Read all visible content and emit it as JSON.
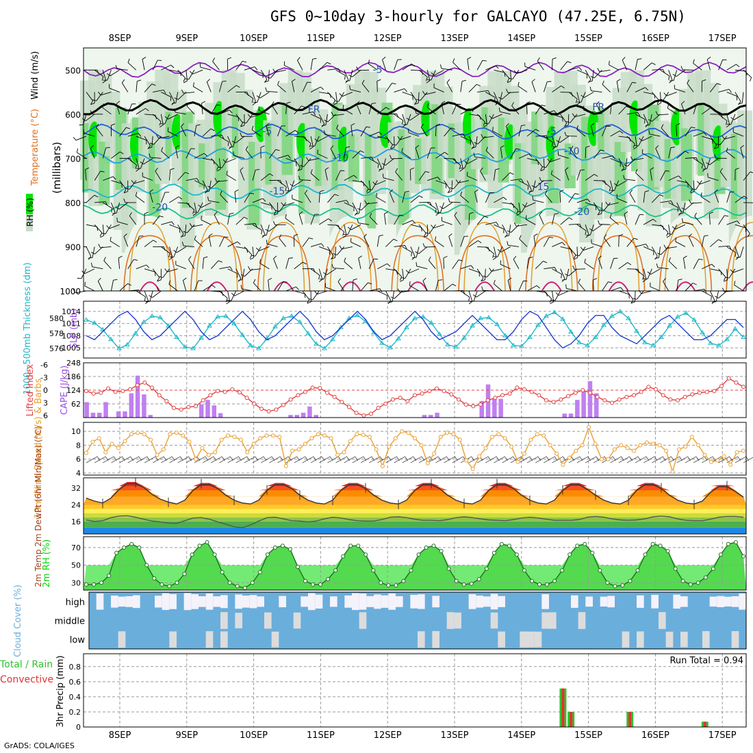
{
  "title": "GFS 0~10day 3-hourly for GALCAYO (47.25E, 6.75N)",
  "footer": "GrADS: COLA/IGES",
  "dates": [
    "8SEP",
    "9SEP",
    "10SEP",
    "11SEP",
    "12SEP",
    "13SEP",
    "14SEP",
    "15SEP",
    "16SEP",
    "17SEP"
  ],
  "colors": {
    "rh_dark": "#00e600",
    "rh_mid": "#7fd67f",
    "rh_light": "#c8dcc8",
    "rh_pale": "#eef6ee",
    "temp_neg": "#8a1fbf",
    "temp_zero": "#000000",
    "temp_5": "#1f5fd6",
    "temp_10": "#1f9fe0",
    "temp_15": "#19b8c8",
    "temp_20": "#19c08a",
    "temp_25": "#e0a030",
    "temp_30": "#e07020",
    "temp_35": "#d0207a",
    "slp": "#1f3fcf",
    "thickness": "#20b8c8",
    "cape": "#c080f0",
    "lifted": "#e04040",
    "wind": "#e8a030",
    "rh2m": "#00d800",
    "cloud": "#6aaedc",
    "cloud_clear": "#f4f2fa",
    "precip_total": "#30c030",
    "precip_conv": "#e83030"
  },
  "chart_data": [
    {
      "id": "upper_air",
      "type": "heatmap",
      "ylabel": "(millibars)",
      "side_labels": [
        "RH (%)",
        "Temperature (°C)",
        "Wind (m/s)"
      ],
      "levels_mb": [
        1000,
        900,
        800,
        700,
        600,
        500
      ],
      "isotherm_labels": [
        {
          "value": "-5",
          "day": 3.85,
          "mb": 500
        },
        {
          "value": "FR",
          "day": 2.9,
          "mb": 590
        },
        {
          "value": "FR",
          "day": 7.15,
          "mb": 585
        },
        {
          "value": "-5",
          "day": 2.2,
          "mb": 640
        },
        {
          "value": "-5",
          "day": 6.45,
          "mb": 640
        },
        {
          "value": "-10",
          "day": 3.3,
          "mb": 700
        },
        {
          "value": "-10",
          "day": 6.75,
          "mb": 685
        },
        {
          "value": "-15",
          "day": 2.35,
          "mb": 775
        },
        {
          "value": "-15",
          "day": 6.3,
          "mb": 765
        },
        {
          "value": "-20",
          "day": 0.6,
          "mb": 812
        },
        {
          "value": "-20",
          "day": 6.9,
          "mb": 822
        }
      ]
    },
    {
      "id": "slp_thickness",
      "type": "line",
      "ylabel": "SLP (mb)",
      "ylabel2": "1000~500mb Thickness (dm)",
      "yticks": [
        "1014",
        "1011",
        "1008",
        "1005"
      ],
      "yticks2": [
        "580",
        "578",
        "576"
      ],
      "ylim": [
        1003,
        1016
      ],
      "ylim2": [
        575,
        582
      ],
      "series": [
        {
          "name": "SLP",
          "values": [
            1008,
            1007,
            1009,
            1011,
            1013,
            1014,
            1012,
            1009,
            1007,
            1008,
            1010,
            1012,
            1014,
            1012,
            1009,
            1007,
            1008,
            1010,
            1012,
            1014,
            1012,
            1009,
            1007,
            1008,
            1010,
            1012,
            1014,
            1012,
            1009,
            1007,
            1008,
            1010,
            1012,
            1014,
            1012,
            1009,
            1007,
            1008,
            1010,
            1012,
            1014,
            1012,
            1009,
            1007,
            1008,
            1009,
            1011,
            1013,
            1011,
            1009,
            1007,
            1007,
            1009,
            1012,
            1014,
            1013,
            1010,
            1007,
            1005,
            1006,
            1008,
            1011,
            1013,
            1013,
            1010,
            1008,
            1007,
            1006,
            1008,
            1010,
            1012,
            1013,
            1011,
            1009,
            1007,
            1007,
            1008,
            1010,
            1012,
            1012,
            1010
          ]
        },
        {
          "name": "Thickness",
          "values": [
            579.8,
            579.4,
            578.5,
            577.2,
            576.0,
            576.5,
            578.0,
            579.5,
            580.3,
            580.1,
            579.0,
            577.5,
            576.2,
            576.0,
            577.4,
            579.0,
            580.2,
            580.3,
            579.3,
            577.8,
            576.4,
            576.0,
            577.3,
            578.9,
            580.0,
            580.3,
            579.5,
            578.0,
            576.6,
            576.0,
            577.2,
            578.8,
            580.0,
            580.4,
            579.6,
            578.1,
            576.7,
            576.1,
            577.3,
            578.8,
            580.0,
            580.2,
            579.4,
            577.9,
            576.5,
            576.2,
            577.4,
            579.0,
            580.0,
            580.1,
            579.2,
            577.7,
            576.4,
            576.3,
            577.5,
            579.1,
            580.3,
            580.8,
            579.9,
            578.2,
            576.8,
            576.4,
            577.5,
            579.1,
            580.3,
            580.9,
            580.0,
            578.3,
            576.8,
            576.4,
            577.5,
            579.0,
            580.2,
            580.7,
            579.8,
            578.1,
            576.7,
            576.4,
            577.2,
            578.6,
            577.5
          ]
        }
      ]
    },
    {
      "id": "cape_li",
      "type": "bar",
      "ylabel": "CAPE (J/kg)",
      "ylabel2": "Lifted Index",
      "yticks": [
        "248",
        "186",
        "124",
        "62"
      ],
      "yticks2": [
        "-6",
        "-3",
        "0",
        "3",
        "6"
      ],
      "ylim": [
        0,
        248
      ],
      "ylim2": [
        6,
        -6
      ],
      "series": [
        {
          "name": "CAPE",
          "values": [
            70,
            22,
            22,
            70,
            0,
            28,
            28,
            110,
            190,
            105,
            12,
            0,
            0,
            0,
            0,
            0,
            0,
            0,
            60,
            80,
            55,
            20,
            0,
            0,
            0,
            0,
            0,
            0,
            0,
            0,
            0,
            0,
            12,
            12,
            22,
            50,
            12,
            0,
            0,
            0,
            0,
            0,
            0,
            0,
            0,
            0,
            0,
            0,
            0,
            0,
            0,
            0,
            0,
            12,
            12,
            22,
            0,
            0,
            0,
            0,
            0,
            0,
            75,
            150,
            85,
            85,
            0,
            0,
            0,
            0,
            0,
            0,
            0,
            0,
            0,
            18,
            18,
            80,
            120,
            165,
            110,
            0,
            0,
            0,
            0,
            0,
            0,
            0,
            0,
            0,
            0,
            0,
            0,
            0,
            0,
            0,
            0,
            0,
            0,
            0,
            0,
            0,
            0,
            0
          ]
        },
        {
          "name": "Lifted Index",
          "values": [
            0.2,
            0.8,
            0.6,
            -0.4,
            0.4,
            0.2,
            -0.2,
            -1.2,
            -1.8,
            -0.6,
            1.2,
            2.6,
            4.2,
            4.6,
            4.0,
            3.8,
            2.4,
            1.2,
            0.2,
            0.4,
            -0.2,
            0.5,
            1.8,
            3.2,
            4.4,
            5.0,
            4.6,
            3.5,
            2.2,
            1.2,
            0.4,
            -0.6,
            -0.5,
            0.6,
            1.6,
            2.8,
            4.0,
            5.4,
            6.0,
            5.6,
            4.2,
            3.2,
            2.2,
            1.8,
            2.6,
            1.2,
            0.8,
            0.2,
            -0.4,
            0.2,
            1.0,
            2.2,
            3.4,
            3.8,
            3.4,
            2.4,
            1.8,
            1.2,
            0.8,
            -0.6,
            -0.2,
            0.4,
            1.2,
            2.4,
            2.8,
            2.2,
            1.4,
            0.6,
            0.0,
            0.6,
            1.6,
            2.4,
            3.0,
            2.2,
            1.6,
            1.2,
            0.4,
            -0.8,
            -0.2,
            1.2,
            2.2,
            2.4,
            1.6,
            1.0,
            0.6,
            0.4,
            0.2,
            -1.0,
            -2.8,
            -1.8,
            -0.8
          ]
        }
      ]
    },
    {
      "id": "wind10m",
      "type": "line",
      "ylabel": "10m Wind Speed (m/s) & Barbs",
      "yticks": [
        "10",
        "8",
        "6",
        "4"
      ],
      "ylim": [
        4,
        11
      ],
      "series": [
        {
          "name": "Wind Speed",
          "values": [
            6.9,
            8.5,
            9.0,
            7.0,
            8.2,
            7.6,
            8.6,
            9.6,
            9.8,
            9.6,
            8.8,
            6.6,
            7.4,
            9.6,
            9.8,
            9.4,
            8.5,
            6.0,
            7.6,
            6.6,
            7.0,
            8.8,
            9.4,
            9.2,
            8.8,
            7.0,
            8.2,
            9.0,
            9.4,
            9.4,
            9.2,
            5.0,
            7.2,
            7.4,
            8.2,
            9.0,
            9.6,
            9.4,
            9.0,
            6.6,
            7.0,
            8.6,
            9.6,
            9.5,
            9.2,
            7.4,
            5.0,
            7.8,
            9.0,
            10.0,
            9.8,
            9.0,
            8.0,
            5.4,
            6.8,
            9.2,
            9.8,
            9.6,
            8.8,
            5.8,
            4.6,
            6.4,
            7.6,
            9.2,
            9.6,
            9.0,
            7.8,
            5.6,
            6.8,
            8.8,
            9.6,
            9.4,
            8.0,
            6.8,
            5.2,
            6.2,
            7.2,
            8.0,
            10.6,
            8.2,
            6.0,
            6.0,
            7.4,
            8.0,
            7.6,
            7.2,
            8.0,
            8.4,
            8.2,
            8.0,
            7.2,
            4.2,
            7.4,
            7.8,
            9.2,
            8.0,
            6.6,
            5.6,
            5.8,
            6.4,
            5.2,
            7.0,
            7.2
          ]
        }
      ]
    },
    {
      "id": "temp2m",
      "type": "area",
      "ylabel": "2m Temp 2m DewPt (6hr Min/Max) (°C)",
      "yticks": [
        "32",
        "24",
        "16"
      ],
      "ylim": [
        10,
        37
      ],
      "series": [
        {
          "name": "2m Temp",
          "values": [
            27.5,
            26.0,
            25.0,
            27.5,
            32.0,
            35.0,
            35.0,
            33.0,
            29.5,
            27.0,
            25.5,
            24.5,
            26.5,
            31.5,
            34.5,
            34.5,
            32.5,
            29.0,
            26.5,
            25.0,
            24.5,
            26.5,
            31.5,
            34.5,
            34.5,
            32.5,
            29.0,
            26.5,
            25.0,
            24.5,
            26.5,
            31.5,
            34.5,
            34.5,
            32.5,
            29.0,
            26.5,
            25.0,
            24.5,
            26.5,
            31.5,
            34.5,
            34.5,
            32.5,
            29.0,
            26.5,
            25.0,
            24.5,
            26.5,
            31.5,
            34.5,
            34.5,
            32.5,
            29.0,
            26.5,
            25.0,
            24.5,
            26.5,
            31.5,
            34.5,
            34.5,
            32.0,
            29.0,
            26.5,
            25.0,
            24.5,
            26.5,
            31.5,
            34.5,
            34.5,
            32.5,
            29.0,
            26.5,
            25.0,
            24.5,
            26.0,
            30.5,
            33.5,
            33.5,
            31.0,
            28.0
          ]
        },
        {
          "name": "2m DewPt",
          "values": [
            16.2,
            15.4,
            15.8,
            17.4,
            18.2,
            18.4,
            17.6,
            16.6,
            15.6,
            15.2,
            14.6,
            14.4,
            15.8,
            17.2,
            17.4,
            16.6,
            15.2,
            14.0,
            12.6,
            12.2,
            13.6,
            15.6,
            17.4,
            17.6,
            16.8,
            15.8,
            15.6,
            15.2,
            15.6,
            16.8,
            17.6,
            17.2,
            16.4,
            15.8,
            15.6,
            15.6,
            16.4,
            17.6,
            17.8,
            17.4,
            16.6,
            16.0,
            16.0,
            15.8,
            16.4,
            17.4,
            17.8,
            17.4,
            16.8,
            16.2,
            16.0,
            15.8,
            16.4,
            17.2,
            17.6,
            17.2,
            16.6,
            16.0,
            16.0,
            16.0,
            16.4,
            17.6,
            18.0,
            17.6,
            16.8,
            16.2,
            16.0,
            16.2,
            16.8,
            17.8,
            18.2,
            17.8,
            16.8,
            16.0,
            15.8,
            15.8,
            16.6,
            17.6,
            18.0,
            18.0,
            17.6
          ]
        }
      ]
    },
    {
      "id": "rh2m",
      "type": "area",
      "ylabel": "2m RH (%)",
      "yticks": [
        "70",
        "50",
        "30"
      ],
      "ylim": [
        24,
        80
      ],
      "series": [
        {
          "name": "2m RH",
          "values": [
            28,
            28,
            30,
            38,
            64,
            70,
            74,
            70,
            50,
            35,
            28,
            26,
            30,
            40,
            62,
            72,
            76,
            62,
            42,
            30,
            26,
            24,
            30,
            42,
            62,
            70,
            72,
            68,
            48,
            32,
            28,
            28,
            34,
            44,
            60,
            72,
            72,
            62,
            44,
            30,
            27,
            27,
            32,
            44,
            62,
            70,
            72,
            66,
            46,
            32,
            28,
            29,
            34,
            46,
            64,
            74,
            72,
            62,
            44,
            32,
            28,
            28,
            32,
            44,
            62,
            72,
            74,
            64,
            44,
            30,
            26,
            27,
            32,
            44,
            62,
            74,
            72,
            66,
            46,
            32,
            28,
            30,
            36,
            46,
            62,
            74,
            76,
            60
          ]
        }
      ]
    },
    {
      "id": "cloud",
      "type": "heatmap",
      "ylabel": "Cloud Cover (%)",
      "rows": [
        "high",
        "middle",
        "low"
      ]
    },
    {
      "id": "precip",
      "type": "bar",
      "ylabel": "3hr Precip (mm)",
      "ylabel2": "Total / Rain Convective",
      "yticks": [
        "0.8",
        "0.6",
        "0.4",
        "0.2",
        "0"
      ],
      "ylim": [
        0,
        0.97
      ],
      "run_total": "Run Total = 0.94",
      "bars": [
        {
          "day": 6.62,
          "total": 0.51,
          "convective": 0.51
        },
        {
          "day": 6.74,
          "total": 0.2,
          "convective": 0.2
        },
        {
          "day": 7.62,
          "total": 0.2,
          "convective": 0.2
        },
        {
          "day": 8.74,
          "total": 0.07,
          "convective": 0.07
        }
      ]
    }
  ]
}
